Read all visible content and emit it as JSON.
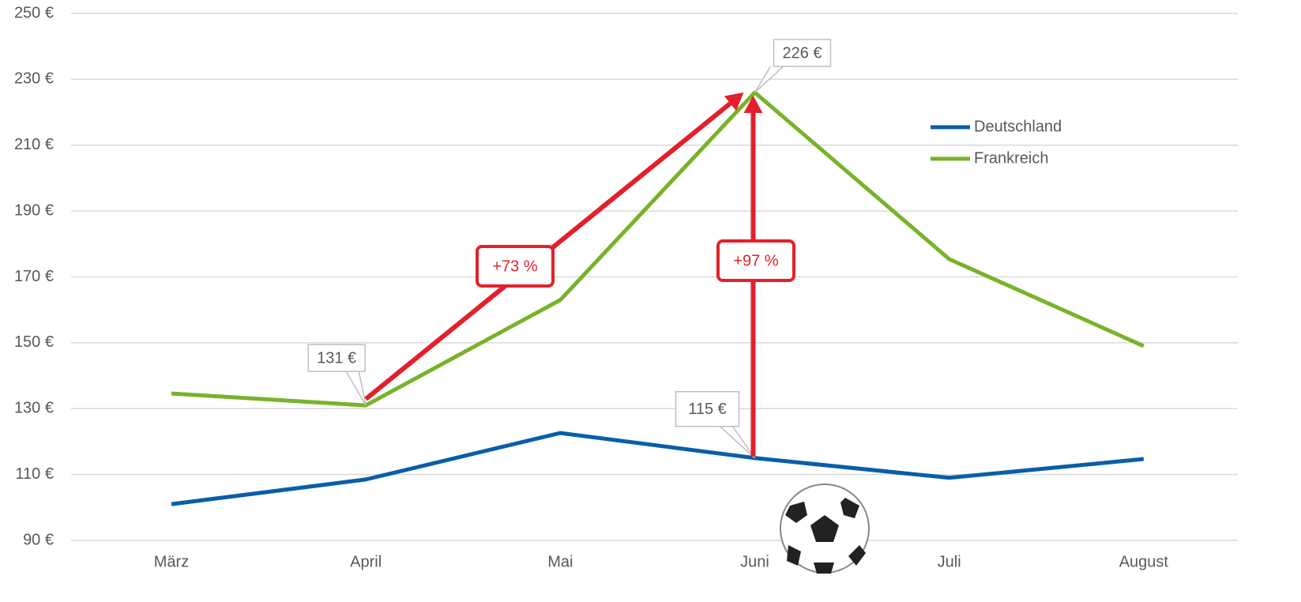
{
  "chart_data": {
    "type": "line",
    "categories": [
      "März",
      "April",
      "Mai",
      "Juni",
      "Juli",
      "August"
    ],
    "series": [
      {
        "name": "Deutschland",
        "color": "#0a5ea8",
        "values": [
          101,
          108.5,
          122.6,
          115,
          109,
          114.7
        ],
        "value_labels": [
          null,
          null,
          null,
          "115 €",
          null,
          null
        ]
      },
      {
        "name": "Frankreich",
        "color": "#77b32a",
        "values": [
          134.6,
          131,
          163,
          226,
          175.4,
          149
        ],
        "value_labels": [
          null,
          "131 €",
          null,
          "226 €",
          null,
          null
        ]
      }
    ],
    "ylim": [
      90,
      250
    ],
    "yticks": [
      {
        "value": 90,
        "label": "90 €"
      },
      {
        "value": 110,
        "label": "110 €"
      },
      {
        "value": 130,
        "label": "130 €"
      },
      {
        "value": 150,
        "label": "150 €"
      },
      {
        "value": 170,
        "label": "170 €"
      },
      {
        "value": 190,
        "label": "190 €"
      },
      {
        "value": 210,
        "label": "210 €"
      },
      {
        "value": 230,
        "label": "230 €"
      },
      {
        "value": 250,
        "label": "250 €"
      }
    ],
    "grid": true,
    "legend": "top-right",
    "annotations": [
      {
        "text": "+73 %",
        "color": "#e3202a"
      },
      {
        "text": "+97 %",
        "color": "#e3202a"
      }
    ]
  }
}
